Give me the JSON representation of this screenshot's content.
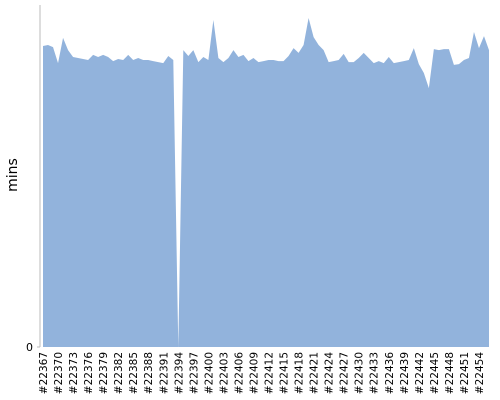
{
  "chart_data": {
    "type": "area",
    "y_label": "mins",
    "color": "#92b3dc",
    "categories": [
      "#22367",
      null,
      null,
      "#22370",
      null,
      null,
      "#22373",
      null,
      null,
      "#22376",
      null,
      null,
      "#22379",
      null,
      null,
      "#22382",
      null,
      null,
      "#22385",
      null,
      null,
      "#22388",
      null,
      null,
      "#22391",
      null,
      null,
      "#22394",
      null,
      null,
      "#22397",
      null,
      null,
      "#22400",
      null,
      null,
      "#22403",
      null,
      null,
      "#22406",
      null,
      null,
      "#22409",
      null,
      null,
      "#22412",
      null,
      null,
      "#22415",
      null,
      null,
      "#22418",
      null,
      null,
      "#22421",
      null,
      null,
      "#22424",
      null,
      null,
      "#22427",
      null,
      null,
      "#22430",
      null,
      null,
      "#22433",
      null,
      null,
      "#22436",
      null,
      null,
      "#22439",
      null,
      null,
      "#22442",
      null,
      null,
      "#22445",
      null,
      null,
      "#22448",
      null,
      null,
      "#22451",
      null,
      null,
      "#22454",
      null,
      null
    ],
    "values": [
      88,
      88.3,
      87.7,
      83,
      90.4,
      86.8,
      84.8,
      84.5,
      84.2,
      83.9,
      85.4,
      84.8,
      85.4,
      84.8,
      83.6,
      84.2,
      83.9,
      85.4,
      83.9,
      84.5,
      83.9,
      83.9,
      83.6,
      83.3,
      83,
      85.1,
      83.9,
      0,
      86.8,
      85.1,
      86.8,
      83.3,
      84.8,
      83.9,
      95.6,
      84.5,
      83.3,
      84.5,
      86.8,
      84.8,
      85.4,
      83.6,
      84.5,
      83.3,
      83.6,
      83.9,
      83.9,
      83.6,
      83.6,
      85.1,
      87.4,
      86,
      88.3,
      96.2,
      90.6,
      88.3,
      86.8,
      83.3,
      83.6,
      83.9,
      85.7,
      83.3,
      83.3,
      84.5,
      86,
      84.5,
      83,
      83.6,
      83,
      84.8,
      83,
      83.3,
      83.6,
      83.9,
      87.4,
      82.7,
      80.1,
      75.7,
      87.1,
      86.8,
      87.1,
      87.1,
      82.5,
      82.7,
      83.9,
      84.5,
      92.1,
      87.4,
      90.9,
      86.8
    ],
    "ylim": [
      0,
      100
    ],
    "yticks": [
      0
    ]
  }
}
